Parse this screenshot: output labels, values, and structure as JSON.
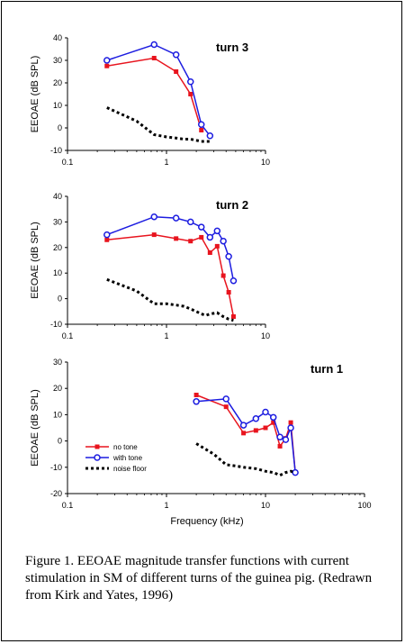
{
  "caption": "Figure 1. EEOAE magnitude transfer functions with current stimulation in SM of different turns of the guinea pig. (Redrawn from Kirk and Yates, 1996)",
  "colors": {
    "no_tone": "#e8141e",
    "with_tone": "#1c1ce0",
    "noise_floor": "#000000"
  },
  "chart_data": [
    {
      "type": "line",
      "title": "turn 3",
      "ylabel": "EEOAE (dB SPL)",
      "xlabel": "",
      "xscale": "log",
      "xlim": [
        0.1,
        10
      ],
      "ylim": [
        -10,
        40
      ],
      "xticks": [
        0.1,
        1,
        10
      ],
      "xticklabels": [
        "0.1",
        "1",
        "10"
      ],
      "yticks": [
        -10,
        0,
        10,
        20,
        30,
        40
      ],
      "series": [
        {
          "key": "no_tone",
          "x": [
            0.25,
            0.75,
            1.25,
            1.75,
            2.25
          ],
          "y": [
            27.5,
            31,
            25,
            15,
            -1
          ]
        },
        {
          "key": "with_tone",
          "x": [
            0.25,
            0.75,
            1.25,
            1.75,
            2.25,
            2.75
          ],
          "y": [
            30,
            37,
            32.5,
            20.5,
            1.5,
            -3.5
          ]
        },
        {
          "key": "noise_floor",
          "x": [
            0.25,
            0.5,
            0.75,
            1.0,
            1.25,
            1.5,
            1.75,
            2.0,
            2.25,
            2.5,
            2.75
          ],
          "y": [
            9,
            3,
            -3,
            -4,
            -4.5,
            -5,
            -5,
            -5.5,
            -6,
            -6,
            -6
          ]
        }
      ]
    },
    {
      "type": "line",
      "title": "turn 2",
      "ylabel": "EEOAE (dB SPL)",
      "xlabel": "",
      "xscale": "log",
      "xlim": [
        0.1,
        10
      ],
      "ylim": [
        -10,
        40
      ],
      "xticks": [
        0.1,
        1,
        10
      ],
      "xticklabels": [
        "0.1",
        "1",
        "10"
      ],
      "yticks": [
        -10,
        0,
        10,
        20,
        30,
        40
      ],
      "series": [
        {
          "key": "no_tone",
          "x": [
            0.25,
            0.75,
            1.25,
            1.75,
            2.25,
            2.75,
            3.25,
            3.75,
            4.25,
            4.75
          ],
          "y": [
            23,
            25,
            23.5,
            22.5,
            24,
            18,
            20.5,
            9,
            2.5,
            -7
          ]
        },
        {
          "key": "with_tone",
          "x": [
            0.25,
            0.75,
            1.25,
            1.75,
            2.25,
            2.75,
            3.25,
            3.75,
            4.25,
            4.75
          ],
          "y": [
            25,
            32,
            31.5,
            30,
            28,
            24,
            26.5,
            22.5,
            16.5,
            7
          ]
        },
        {
          "key": "noise_floor",
          "x": [
            0.25,
            0.5,
            0.75,
            1.0,
            1.25,
            1.5,
            1.75,
            2.0,
            2.25,
            2.5,
            2.75,
            3.25,
            3.75,
            4.25,
            4.75
          ],
          "y": [
            7.5,
            3,
            -2,
            -2,
            -2.5,
            -3,
            -4,
            -5,
            -6,
            -6.5,
            -6,
            -5.5,
            -7,
            -8,
            -8.5
          ]
        }
      ]
    },
    {
      "type": "line",
      "title": "turn 1",
      "ylabel": "EEOAE (dB SPL)",
      "xlabel": "Frequency (kHz)",
      "xscale": "log",
      "xlim": [
        0.1,
        100
      ],
      "ylim": [
        -20,
        30
      ],
      "xticks": [
        0.1,
        1,
        10,
        100
      ],
      "xticklabels": [
        "0.1",
        "1",
        "10",
        "100"
      ],
      "yticks": [
        -20,
        -10,
        0,
        10,
        20,
        30
      ],
      "legend": {
        "position": "bottom-left",
        "entries": [
          "no tone",
          "with tone",
          "noise floor"
        ]
      },
      "series": [
        {
          "key": "no_tone",
          "name": "no tone",
          "x": [
            2,
            4,
            6,
            8,
            10,
            12,
            14,
            16,
            18,
            20
          ],
          "y": [
            17.5,
            13,
            3,
            4,
            5,
            7,
            -2,
            1,
            7,
            -12
          ]
        },
        {
          "key": "with_tone",
          "name": "with tone",
          "x": [
            2,
            4,
            6,
            8,
            10,
            12,
            14,
            16,
            18,
            20
          ],
          "y": [
            15,
            16,
            6,
            8.5,
            11,
            9,
            1.5,
            0.5,
            5,
            -12
          ]
        },
        {
          "key": "noise_floor",
          "name": "noise floor",
          "x": [
            2,
            3,
            4,
            5,
            6,
            8,
            10,
            12,
            14,
            16,
            18,
            20
          ],
          "y": [
            -1,
            -5,
            -9,
            -9.5,
            -10,
            -10.5,
            -11.5,
            -12,
            -13,
            -12,
            -11.5,
            -12
          ]
        }
      ]
    }
  ]
}
